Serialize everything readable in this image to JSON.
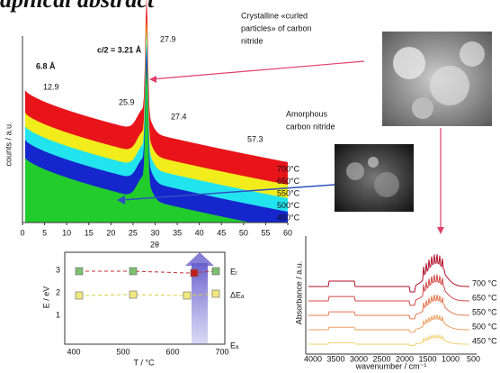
{
  "header": {
    "title": "aphical abstract"
  },
  "xrd": {
    "y_label": "counts / a.u.",
    "x_label": "2θ",
    "x_ticks": [
      "0",
      "5",
      "10",
      "15",
      "20",
      "25",
      "30",
      "35",
      "40",
      "45",
      "50",
      "55",
      "60"
    ],
    "annotations": {
      "c_half": "c/2 = 3.21 Å",
      "d_spacing": "6.8 Å",
      "peak_12_9": "12.9",
      "peak_25_9": "25.9",
      "peak_27_9": "27.9",
      "peak_27_4": "27.4",
      "peak_57_3": "57.3"
    },
    "temperatures": [
      "700°C",
      "650°C",
      "550°C",
      "500°C",
      "450°C"
    ]
  },
  "callouts": {
    "crystalline": [
      "Crystalline «curled",
      "particles» of carbon",
      "nitride"
    ],
    "amorphous": [
      "Amorphous",
      "carbon nitride"
    ]
  },
  "energy_plot": {
    "y_label": "E / eV",
    "x_label": "T / °C",
    "x_ticks": [
      "400",
      "500",
      "600",
      "700"
    ],
    "y_ticks": [
      "3",
      "2",
      "1"
    ],
    "series_labels": [
      "Eₜ",
      "ΔEₐ",
      "Eₐ"
    ]
  },
  "ir_plot": {
    "y_label": "Absorbance / a.u.",
    "x_label": "wavenumber / cm⁻¹",
    "x_ticks": [
      "4000",
      "3500",
      "3000",
      "2500",
      "2000",
      "1500",
      "1000",
      "500"
    ],
    "temperatures": [
      "700 °C",
      "650 °C",
      "550 °C",
      "500 °C",
      "450 °C"
    ]
  }
}
